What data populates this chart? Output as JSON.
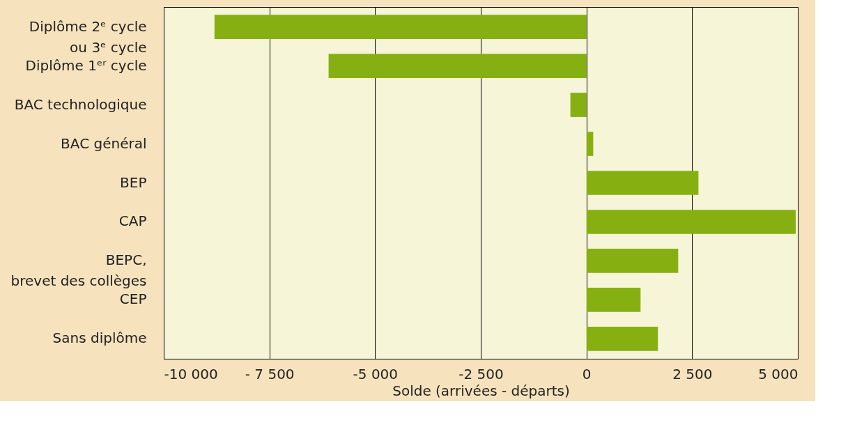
{
  "chart_data": {
    "type": "bar",
    "orientation": "horizontal",
    "xlabel": "Solde (arrivées - départs)",
    "categories": [
      "Diplôme 2ᵉ cycle\nou 3ᵉ cycle",
      "Diplôme 1ᵉʳ cycle",
      "BAC technologique",
      "BAC général",
      "BEP",
      "CAP",
      "BEPC,\nbrevet des collèges",
      "CEP",
      "Sans diplôme"
    ],
    "values": [
      -8800,
      -6100,
      -380,
      160,
      2650,
      4950,
      2170,
      1280,
      1690
    ],
    "color": "#86b012",
    "xlim": [
      -10000,
      5000
    ],
    "xticks": [
      {
        "value": -10000,
        "label": "-10 000"
      },
      {
        "value": -7500,
        "label": "- 7 500"
      },
      {
        "value": -5000,
        "label": "-5 000"
      },
      {
        "value": -2500,
        "label": "-2 500"
      },
      0,
      {
        "value": 2500,
        "label": "2 500"
      },
      {
        "value": 5000,
        "label": "5 000"
      }
    ],
    "grid": "x"
  }
}
